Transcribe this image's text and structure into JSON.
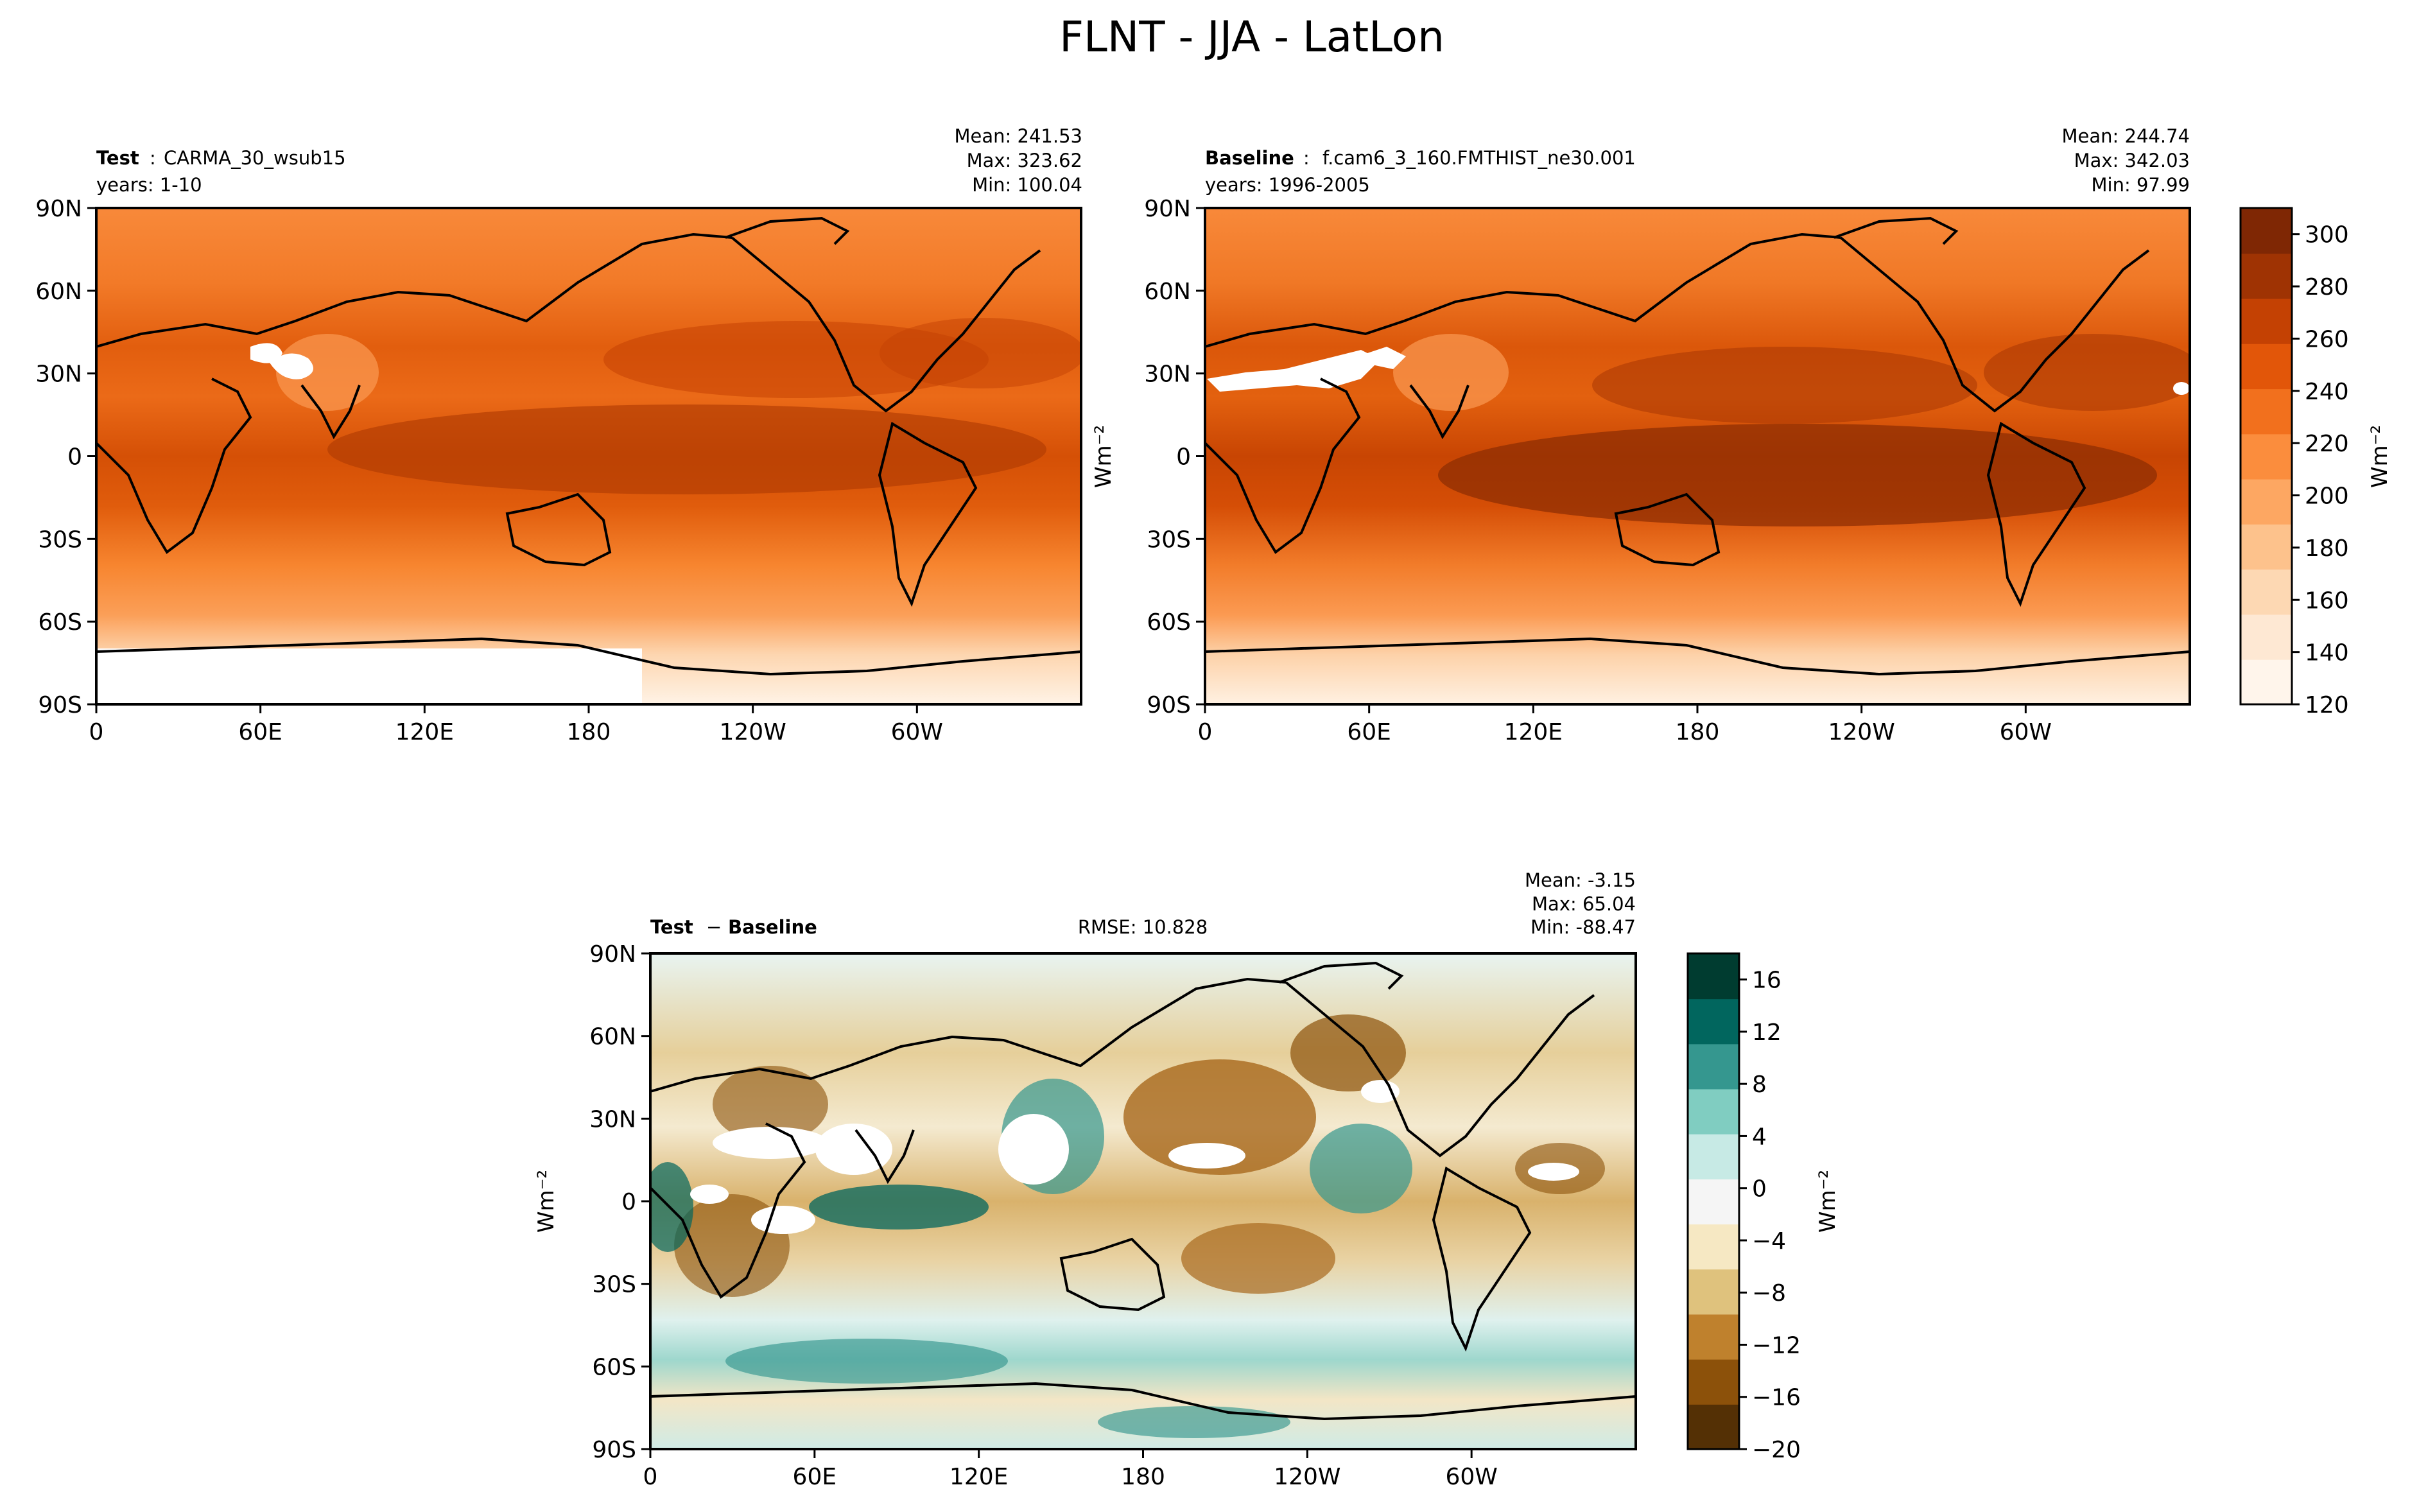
{
  "figure": {
    "title": "FLNT - JJA - LatLon"
  },
  "chart_data": [
    {
      "type": "heatmap",
      "panel": "test",
      "label_bold": "Test",
      "label_text": "CARMA_30_wsub15",
      "years": "years: 1-10",
      "stats": {
        "mean": "Mean: 241.53",
        "max": "Max: 323.62",
        "min": "Min: 100.04"
      },
      "xticks": [
        "0",
        "60E",
        "120E",
        "180",
        "120W",
        "60W"
      ],
      "yticks": [
        "90N",
        "60N",
        "30N",
        "0",
        "30S",
        "60S",
        "90S"
      ],
      "xlim": [
        0,
        360
      ],
      "ylim": [
        -90,
        90
      ],
      "colormap": "Oranges",
      "zlim": [
        120,
        310
      ]
    },
    {
      "type": "heatmap",
      "panel": "baseline",
      "label_bold": "Baseline",
      "label_text": "f.cam6_3_160.FMTHIST_ne30.001",
      "years": "years: 1996-2005",
      "stats": {
        "mean": "Mean: 244.74",
        "max": "Max: 342.03",
        "min": "Min: 97.99"
      },
      "ylabel": "Wm⁻²",
      "xticks": [
        "0",
        "60E",
        "120E",
        "180",
        "120W",
        "60W"
      ],
      "yticks": [
        "90N",
        "60N",
        "30N",
        "0",
        "30S",
        "60S",
        "90S"
      ],
      "xlim": [
        0,
        360
      ],
      "ylim": [
        -90,
        90
      ],
      "colormap": "Oranges",
      "zlim": [
        120,
        310
      ],
      "colorbar": {
        "ticks": [
          "300",
          "280",
          "260",
          "240",
          "220",
          "200",
          "180",
          "160",
          "140",
          "120"
        ],
        "label": "Wm⁻²",
        "colors": [
          "#fff5eb",
          "#fee8d3",
          "#fdd8b3",
          "#fdc28c",
          "#fda762",
          "#fb8d3d",
          "#f2701d",
          "#e25609",
          "#c44103",
          "#9f3303",
          "#7f2704"
        ]
      }
    },
    {
      "type": "heatmap",
      "panel": "difference",
      "label_bold_a": "Test",
      "label_minus": "−",
      "label_bold_b": "Baseline",
      "rmse": "RMSE: 10.828",
      "stats": {
        "mean": "Mean: -3.15",
        "max": "Max: 65.04",
        "min": "Min: -88.47"
      },
      "ylabel": "Wm⁻²",
      "xticks": [
        "0",
        "60E",
        "120E",
        "180",
        "120W",
        "60W"
      ],
      "yticks": [
        "90N",
        "60N",
        "30N",
        "0",
        "30S",
        "60S",
        "90S"
      ],
      "xlim": [
        0,
        360
      ],
      "ylim": [
        -90,
        90
      ],
      "colormap": "BrBG",
      "zlim": [
        -20,
        18
      ],
      "colorbar": {
        "ticks": [
          "16",
          "12",
          "8",
          "4",
          "0",
          "−4",
          "−8",
          "−12",
          "−16",
          "−20"
        ],
        "label": "Wm⁻²",
        "colors": [
          "#543005",
          "#8c510a",
          "#bf812d",
          "#dfc27d",
          "#f6e8c3",
          "#f5f5f5",
          "#c7eae5",
          "#80cdc1",
          "#35978f",
          "#01665e",
          "#003c30"
        ]
      }
    }
  ]
}
